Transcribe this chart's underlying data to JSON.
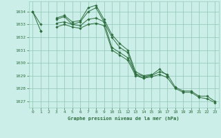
{
  "bg_color": "#cceee8",
  "grid_color": "#99ccbb",
  "line_color": "#2d6e3e",
  "title": "Graphe pression niveau de la mer (hPa)",
  "ylim": [
    1026.5,
    1034.8
  ],
  "xlim": [
    -0.5,
    23.5
  ],
  "yticks": [
    1027,
    1028,
    1029,
    1030,
    1031,
    1032,
    1033,
    1034
  ],
  "xticks": [
    0,
    1,
    2,
    3,
    4,
    5,
    6,
    7,
    8,
    9,
    10,
    11,
    12,
    13,
    14,
    15,
    16,
    17,
    18,
    19,
    20,
    21,
    22,
    23
  ],
  "series": [
    [
      1034.0,
      1032.5,
      null,
      1033.5,
      1033.7,
      1033.2,
      1033.3,
      1034.3,
      1034.5,
      1033.4,
      1032.2,
      1031.5,
      1031.0,
      1029.3,
      1029.0,
      1029.1,
      null,
      null,
      null,
      null,
      null,
      null,
      null,
      null
    ],
    [
      1034.0,
      null,
      null,
      1033.4,
      1033.6,
      1033.0,
      1033.2,
      1034.0,
      1034.3,
      1033.2,
      1032.0,
      1031.2,
      1030.8,
      1029.1,
      1028.8,
      1029.05,
      1029.5,
      1029.0,
      null,
      null,
      null,
      null,
      null,
      null
    ],
    [
      1034.0,
      1033.0,
      null,
      1033.1,
      1033.2,
      1033.0,
      1032.9,
      1033.4,
      1033.5,
      1033.2,
      1031.2,
      1030.8,
      1030.4,
      1029.15,
      1028.95,
      1029.0,
      1029.3,
      1029.1,
      1028.1,
      1027.8,
      1027.8,
      1027.4,
      1027.4,
      1027.0
    ],
    [
      null,
      1032.5,
      null,
      1032.8,
      1033.0,
      1032.8,
      1032.7,
      1033.0,
      1033.1,
      1032.9,
      1031.0,
      1030.6,
      1030.2,
      1029.0,
      1028.8,
      1028.9,
      1029.1,
      1028.85,
      1028.0,
      1027.7,
      1027.7,
      1027.3,
      1027.2,
      1026.9
    ]
  ]
}
